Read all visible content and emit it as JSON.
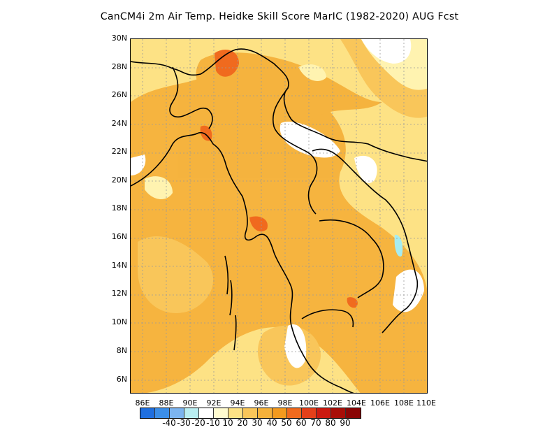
{
  "title": "CanCM4i  2m Air Temp. Heidke Skill Score MarIC (1982-2020) AUG Fcst",
  "map": {
    "lon_range": [
      85,
      110
    ],
    "lat_range": [
      5,
      30
    ],
    "lat_labels": [
      "30N",
      "28N",
      "26N",
      "24N",
      "22N",
      "20N",
      "18N",
      "16N",
      "14N",
      "12N",
      "10N",
      "8N",
      "6N"
    ],
    "lon_labels": [
      "86E",
      "88E",
      "90E",
      "92E",
      "94E",
      "96E",
      "98E",
      "100E",
      "102E",
      "104E",
      "106E",
      "108E",
      "110E"
    ],
    "background_color": "#fde285",
    "shading": [
      {
        "level": 40,
        "color": "#f5b13b"
      },
      {
        "level": 30,
        "color": "#f9c65a"
      },
      {
        "level": 60,
        "color": "#f06a1e"
      },
      {
        "level": 10,
        "color": "#ffffff"
      },
      {
        "level": 20,
        "color": "#fff3b0"
      },
      {
        "level": -10,
        "color": "#a6ecf0"
      }
    ]
  },
  "colorbar": {
    "colors": [
      "#1f6fe0",
      "#3b8ee8",
      "#7cb4ef",
      "#b9eef2",
      "#ffffff",
      "#fffbd0",
      "#fde285",
      "#f9c65a",
      "#f5b13b",
      "#f39a1f",
      "#f06a1e",
      "#e4401a",
      "#cc1a10",
      "#a80e08",
      "#8a0606"
    ],
    "labels": [
      "-40",
      "-30",
      "-20",
      "-10",
      "10",
      "20",
      "30",
      "40",
      "50",
      "60",
      "70",
      "80",
      "90"
    ]
  }
}
